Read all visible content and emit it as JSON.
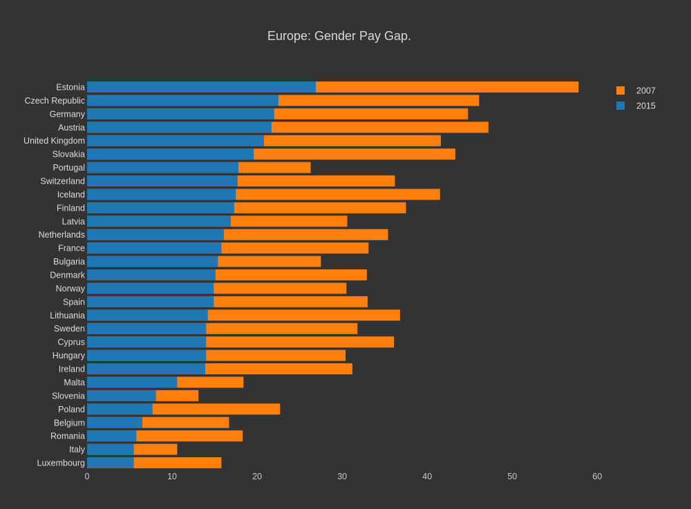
{
  "chart_data": {
    "type": "bar",
    "orientation": "horizontal",
    "barmode": "overlay",
    "title": "Europe: Gender Pay Gap.",
    "xlabel": "",
    "ylabel": "",
    "xlim": [
      0,
      62
    ],
    "x_ticks": [
      0,
      10,
      20,
      30,
      40,
      50,
      60
    ],
    "grid": false,
    "legend_position": "top-right",
    "categories": [
      "Estonia",
      "Czech Republic",
      "Germany",
      "Austria",
      "United Kingdom",
      "Slovakia",
      "Portugal",
      "Switzerland",
      "Iceland",
      "Finland",
      "Latvia",
      "Netherlands",
      "France",
      "Bulgaria",
      "Denmark",
      "Norway",
      "Spain",
      "Lithuania",
      "Sweden",
      "Cyprus",
      "Hungary",
      "Ireland",
      "Malta",
      "Slovenia",
      "Poland",
      "Belgium",
      "Romania",
      "Italy",
      "Luxembourg"
    ],
    "series": [
      {
        "name": "2007",
        "color": "#ff7f0e",
        "values": [
          57.8,
          46.1,
          44.8,
          47.2,
          41.6,
          43.3,
          26.3,
          36.2,
          41.5,
          37.5,
          30.6,
          35.4,
          33.1,
          27.5,
          32.9,
          30.5,
          33.0,
          36.8,
          31.8,
          36.1,
          30.4,
          31.2,
          18.4,
          13.1,
          22.7,
          16.7,
          18.3,
          10.6,
          15.8
        ]
      },
      {
        "name": "2015",
        "color": "#1f77b4",
        "values": [
          26.9,
          22.5,
          22.0,
          21.7,
          20.8,
          19.6,
          17.8,
          17.7,
          17.5,
          17.3,
          16.9,
          16.1,
          15.8,
          15.4,
          15.1,
          14.9,
          14.9,
          14.2,
          14.0,
          14.0,
          14.0,
          13.9,
          10.6,
          8.1,
          7.7,
          6.5,
          5.8,
          5.5,
          5.5
        ]
      }
    ]
  }
}
